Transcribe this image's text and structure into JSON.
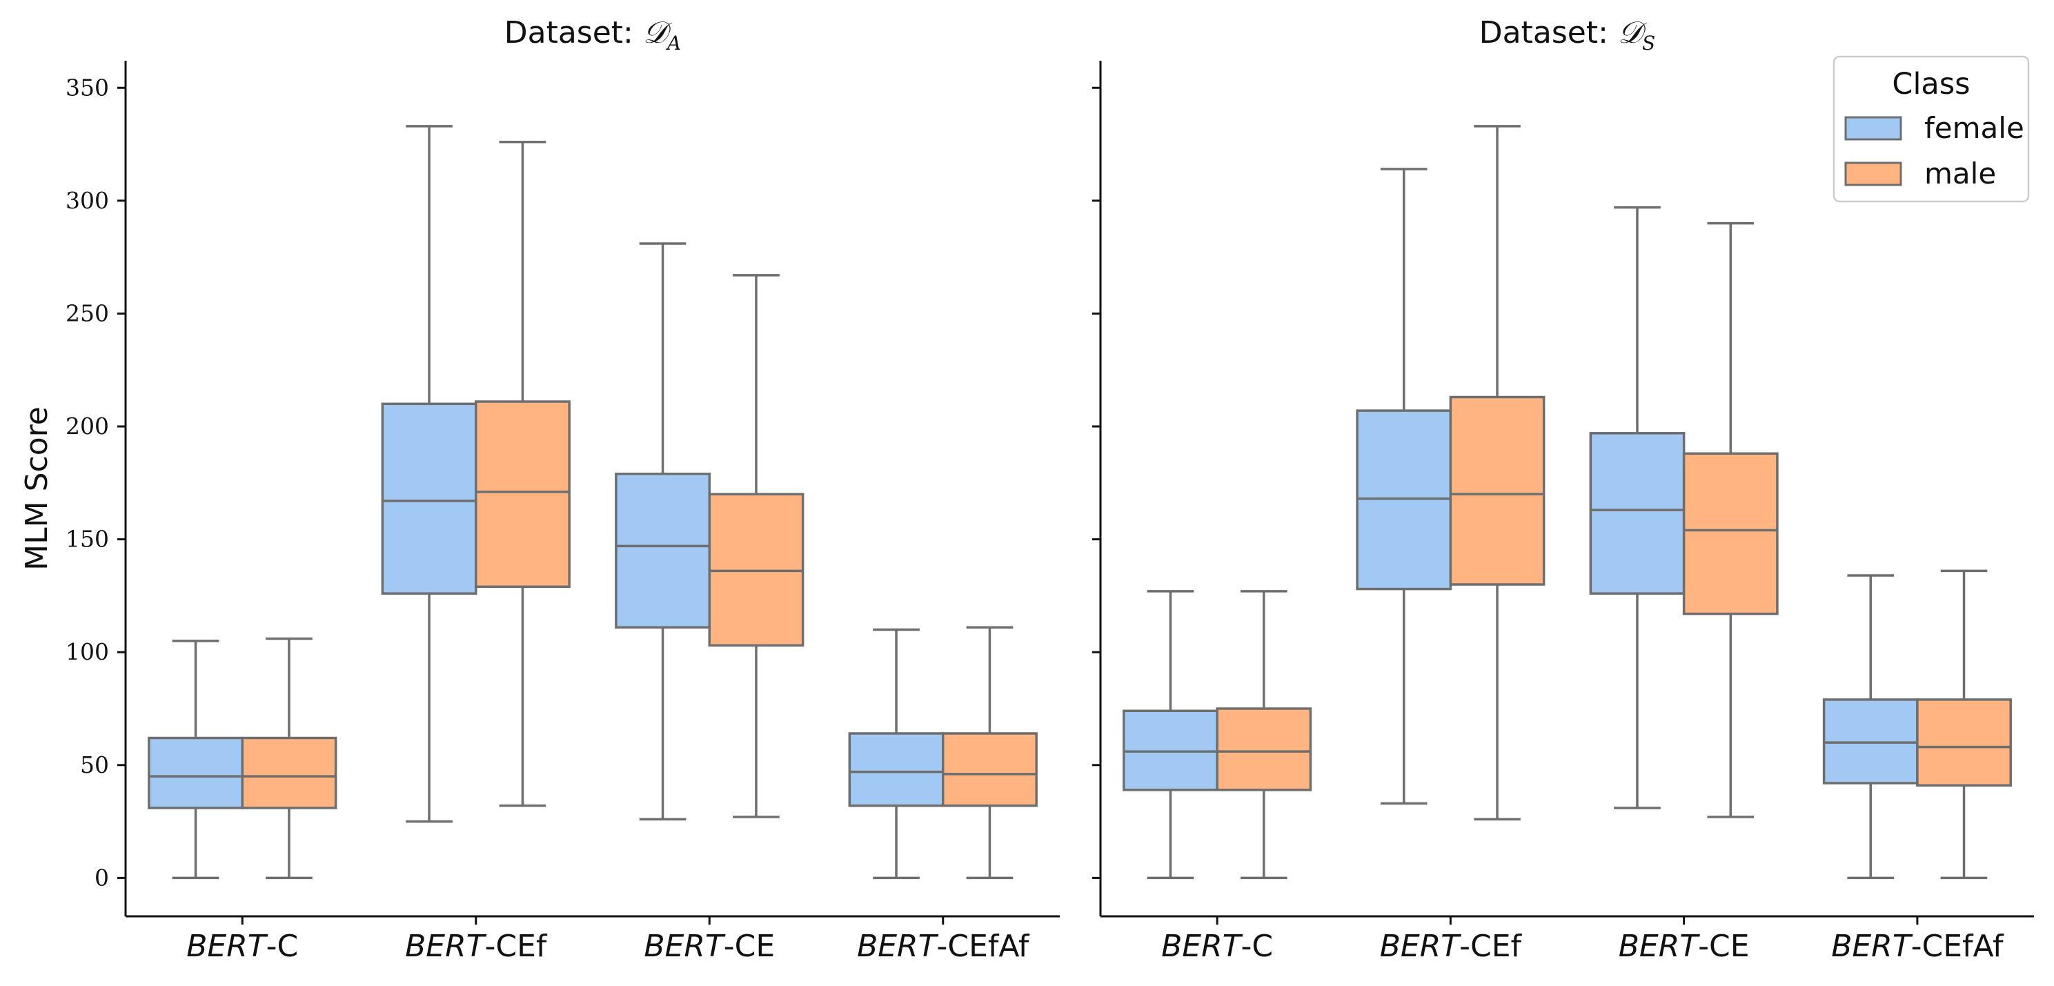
{
  "chart_data": [
    {
      "type": "box",
      "title": "Dataset: 𝒟_A",
      "title_parts": {
        "prefix": "Dataset: ",
        "symbol": "𝒟",
        "subscript": "A"
      },
      "xlabel": "",
      "ylabel": "MLM Score",
      "ylim": [
        -17,
        362
      ],
      "yticks": [
        0,
        50,
        100,
        150,
        200,
        250,
        300,
        350
      ],
      "categories": [
        {
          "prefix": "BERT",
          "suffix": "-C"
        },
        {
          "prefix": "BERT",
          "suffix": "-CEf"
        },
        {
          "prefix": "BERT",
          "suffix": "-CE"
        },
        {
          "prefix": "BERT",
          "suffix": "-CEfAf"
        }
      ],
      "series": [
        {
          "name": "female",
          "color": "#a1c9f4",
          "boxes": [
            {
              "whislo": 0,
              "q1": 31,
              "med": 45,
              "q3": 62,
              "whishi": 105
            },
            {
              "whislo": 25,
              "q1": 126,
              "med": 167,
              "q3": 210,
              "whishi": 333
            },
            {
              "whislo": 26,
              "q1": 111,
              "med": 147,
              "q3": 179,
              "whishi": 281
            },
            {
              "whislo": 0,
              "q1": 32,
              "med": 47,
              "q3": 64,
              "whishi": 110
            }
          ]
        },
        {
          "name": "male",
          "color": "#ffb482",
          "boxes": [
            {
              "whislo": 0,
              "q1": 31,
              "med": 45,
              "q3": 62,
              "whishi": 106
            },
            {
              "whislo": 32,
              "q1": 129,
              "med": 171,
              "q3": 211,
              "whishi": 326
            },
            {
              "whislo": 27,
              "q1": 103,
              "med": 136,
              "q3": 170,
              "whishi": 267
            },
            {
              "whislo": 0,
              "q1": 32,
              "med": 46,
              "q3": 64,
              "whishi": 111
            }
          ]
        }
      ]
    },
    {
      "type": "box",
      "title": "Dataset: 𝒟_S",
      "title_parts": {
        "prefix": "Dataset: ",
        "symbol": "𝒟",
        "subscript": "S"
      },
      "xlabel": "",
      "ylabel": "",
      "ylim": [
        -17,
        362
      ],
      "yticks": [
        0,
        50,
        100,
        150,
        200,
        250,
        300,
        350
      ],
      "categories": [
        {
          "prefix": "BERT",
          "suffix": "-C"
        },
        {
          "prefix": "BERT",
          "suffix": "-CEf"
        },
        {
          "prefix": "BERT",
          "suffix": "-CE"
        },
        {
          "prefix": "BERT",
          "suffix": "-CEfAf"
        }
      ],
      "series": [
        {
          "name": "female",
          "color": "#a1c9f4",
          "boxes": [
            {
              "whislo": 0,
              "q1": 39,
              "med": 56,
              "q3": 74,
              "whishi": 127
            },
            {
              "whislo": 33,
              "q1": 128,
              "med": 168,
              "q3": 207,
              "whishi": 314
            },
            {
              "whislo": 31,
              "q1": 126,
              "med": 163,
              "q3": 197,
              "whishi": 297
            },
            {
              "whislo": 0,
              "q1": 42,
              "med": 60,
              "q3": 79,
              "whishi": 134
            }
          ]
        },
        {
          "name": "male",
          "color": "#ffb482",
          "boxes": [
            {
              "whislo": 0,
              "q1": 39,
              "med": 56,
              "q3": 75,
              "whishi": 127
            },
            {
              "whislo": 26,
              "q1": 130,
              "med": 170,
              "q3": 213,
              "whishi": 333
            },
            {
              "whislo": 27,
              "q1": 117,
              "med": 154,
              "q3": 188,
              "whishi": 290
            },
            {
              "whislo": 0,
              "q1": 41,
              "med": 58,
              "q3": 79,
              "whishi": 136
            }
          ]
        }
      ]
    }
  ],
  "legend": {
    "title": "Class",
    "placement": "upper right of right panel",
    "entries": [
      {
        "label": "female",
        "color": "#a1c9f4"
      },
      {
        "label": "male",
        "color": "#ffb482"
      }
    ]
  },
  "style": {
    "box_edge_color": "#6e6e6e",
    "axis_color": "#111111"
  }
}
